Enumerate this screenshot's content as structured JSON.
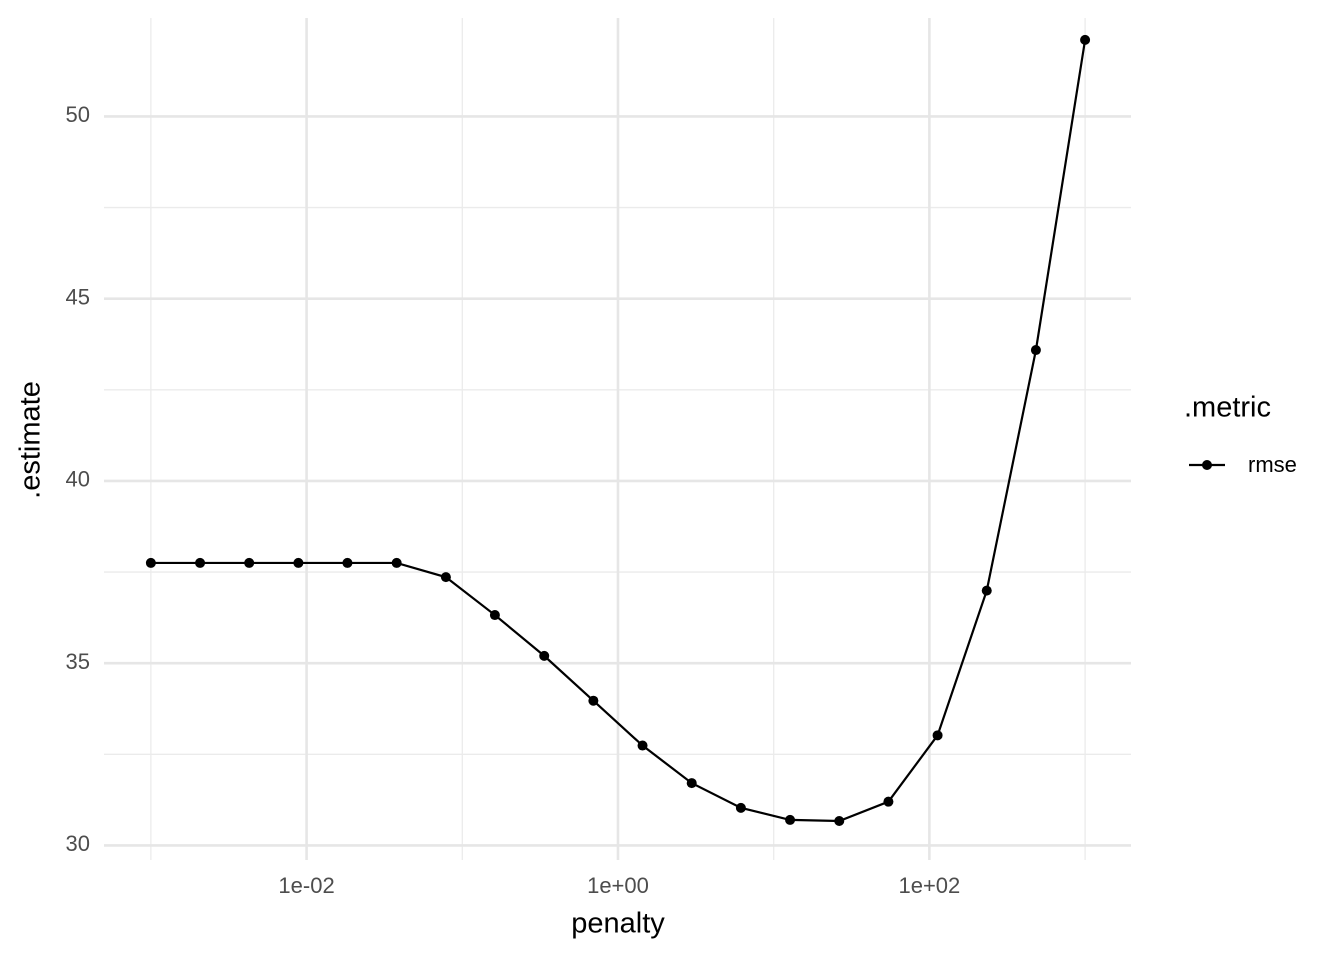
{
  "chart_data": {
    "type": "line",
    "x_label": "penalty",
    "y_label": ".estimate",
    "legend_title": ".metric",
    "x_log": true,
    "grid": true,
    "x": [
      0.001,
      0.00207,
      0.00428,
      0.00886,
      0.0183,
      0.0379,
      0.0785,
      0.162,
      0.336,
      0.695,
      1.438,
      2.976,
      6.158,
      12.74,
      26.37,
      54.56,
      112.9,
      233.6,
      483.3,
      1000
    ],
    "series": [
      {
        "name": "rmse",
        "color": "#000000",
        "values": [
          37.75,
          37.75,
          37.75,
          37.75,
          37.75,
          37.75,
          37.36,
          36.32,
          35.2,
          33.97,
          32.74,
          31.71,
          31.03,
          30.7,
          30.67,
          31.2,
          33.02,
          36.99,
          43.59,
          52.1
        ]
      }
    ],
    "xlim": [
      0.0005,
      1972
    ],
    "ylim": [
      29.6,
      52.7
    ],
    "xticks": [
      {
        "value": 0.01,
        "label": "1e-02"
      },
      {
        "value": 1,
        "label": "1e+00"
      },
      {
        "value": 100,
        "label": "1e+02"
      }
    ],
    "yticks": [
      30,
      35,
      40,
      45,
      50
    ],
    "x_minor_ticks": [
      0.001,
      0.1,
      10,
      1000
    ],
    "y_minor_ticks": [
      32.5,
      37.5,
      42.5,
      47.5
    ]
  }
}
